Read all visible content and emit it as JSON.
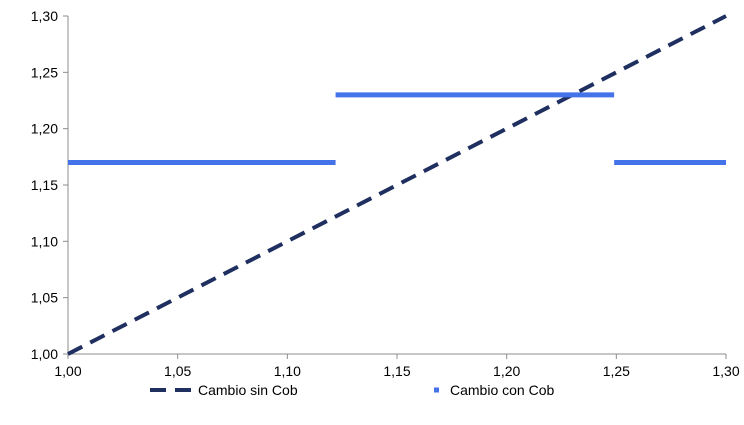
{
  "chart_data": {
    "type": "line",
    "title": "",
    "xlabel": "",
    "ylabel": "",
    "xlim": [
      1.0,
      1.3
    ],
    "ylim": [
      1.0,
      1.3
    ],
    "x_ticks": [
      1.0,
      1.05,
      1.1,
      1.15,
      1.2,
      1.25,
      1.3
    ],
    "x_tick_labels": [
      "1,00",
      "1,05",
      "1,10",
      "1,15",
      "1,20",
      "1,25",
      "1,30"
    ],
    "y_ticks": [
      1.0,
      1.05,
      1.1,
      1.15,
      1.2,
      1.25,
      1.3
    ],
    "y_tick_labels": [
      "1,00",
      "1,05",
      "1,10",
      "1,15",
      "1,20",
      "1,25",
      "1,30"
    ],
    "grid": false,
    "legend_position": "bottom",
    "series": [
      {
        "name": "Cambio sin Cob",
        "color": "#1f2f5f",
        "style": "dashed",
        "x": [
          1.0,
          1.3
        ],
        "y": [
          1.0,
          1.3
        ]
      },
      {
        "name": "Cambio con Cob",
        "color": "#4472e8",
        "style": "solid",
        "segments": [
          {
            "x": [
              1.0,
              1.122
            ],
            "y": [
              1.17,
              1.17
            ]
          },
          {
            "x": [
              1.122,
              1.249
            ],
            "y": [
              1.23,
              1.23
            ]
          },
          {
            "x": [
              1.249,
              1.3
            ],
            "y": [
              1.17,
              1.17
            ]
          }
        ]
      }
    ]
  }
}
